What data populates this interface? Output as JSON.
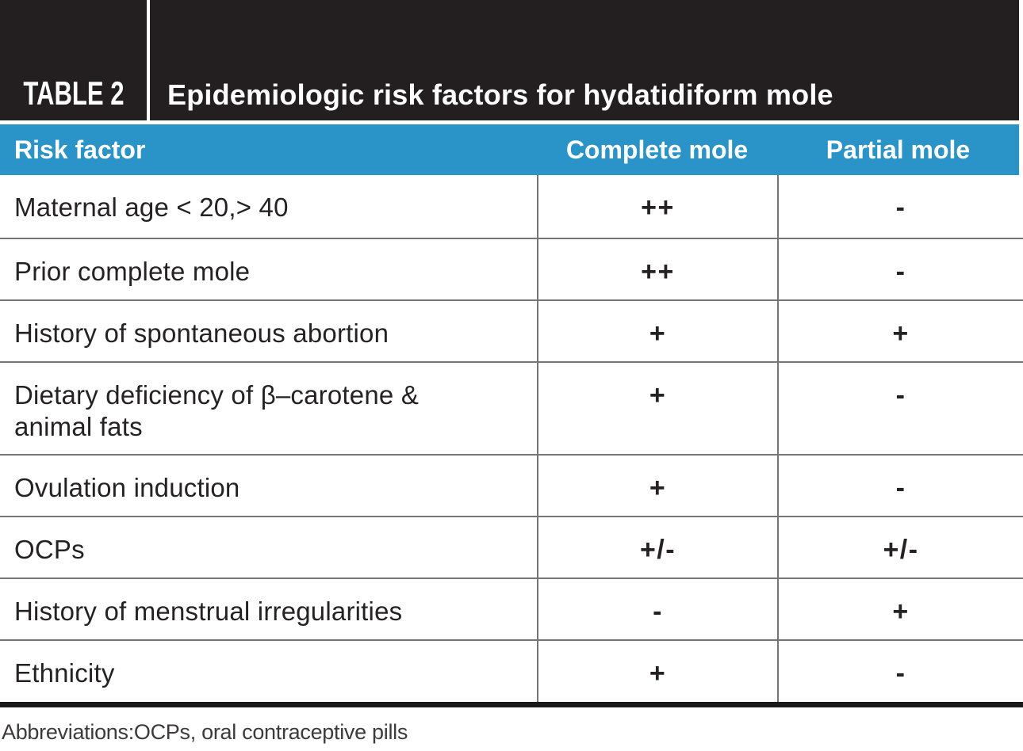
{
  "header": {
    "label": "TABLE 2",
    "title": "Epidemiologic risk factors for hydatidiform mole"
  },
  "columns": {
    "risk_factor": "Risk factor",
    "complete": "Complete mole",
    "partial": "Partial mole"
  },
  "rows": [
    {
      "factor": "Maternal age < 20,> 40",
      "complete": "++",
      "partial": "-"
    },
    {
      "factor": "Prior complete mole",
      "complete": "++",
      "partial": "-"
    },
    {
      "factor": "History of spontaneous abortion",
      "complete": "+",
      "partial": "+"
    },
    {
      "factor": "Dietary deficiency of β–carotene &\nanimal fats",
      "complete": "+",
      "partial": "-"
    },
    {
      "factor": "Ovulation induction",
      "complete": "+",
      "partial": "-"
    },
    {
      "factor": "OCPs",
      "complete": "+/-",
      "partial": "+/-"
    },
    {
      "factor": "History of menstrual irregularities",
      "complete": "-",
      "partial": "+"
    },
    {
      "factor": "Ethnicity",
      "complete": "+",
      "partial": "-"
    }
  ],
  "footnote": "Abbreviations:OCPs, oral contraceptive pills",
  "colors": {
    "band_black": "#231F20",
    "header_blue": "#2A93C7",
    "grid_gray": "#757575"
  }
}
